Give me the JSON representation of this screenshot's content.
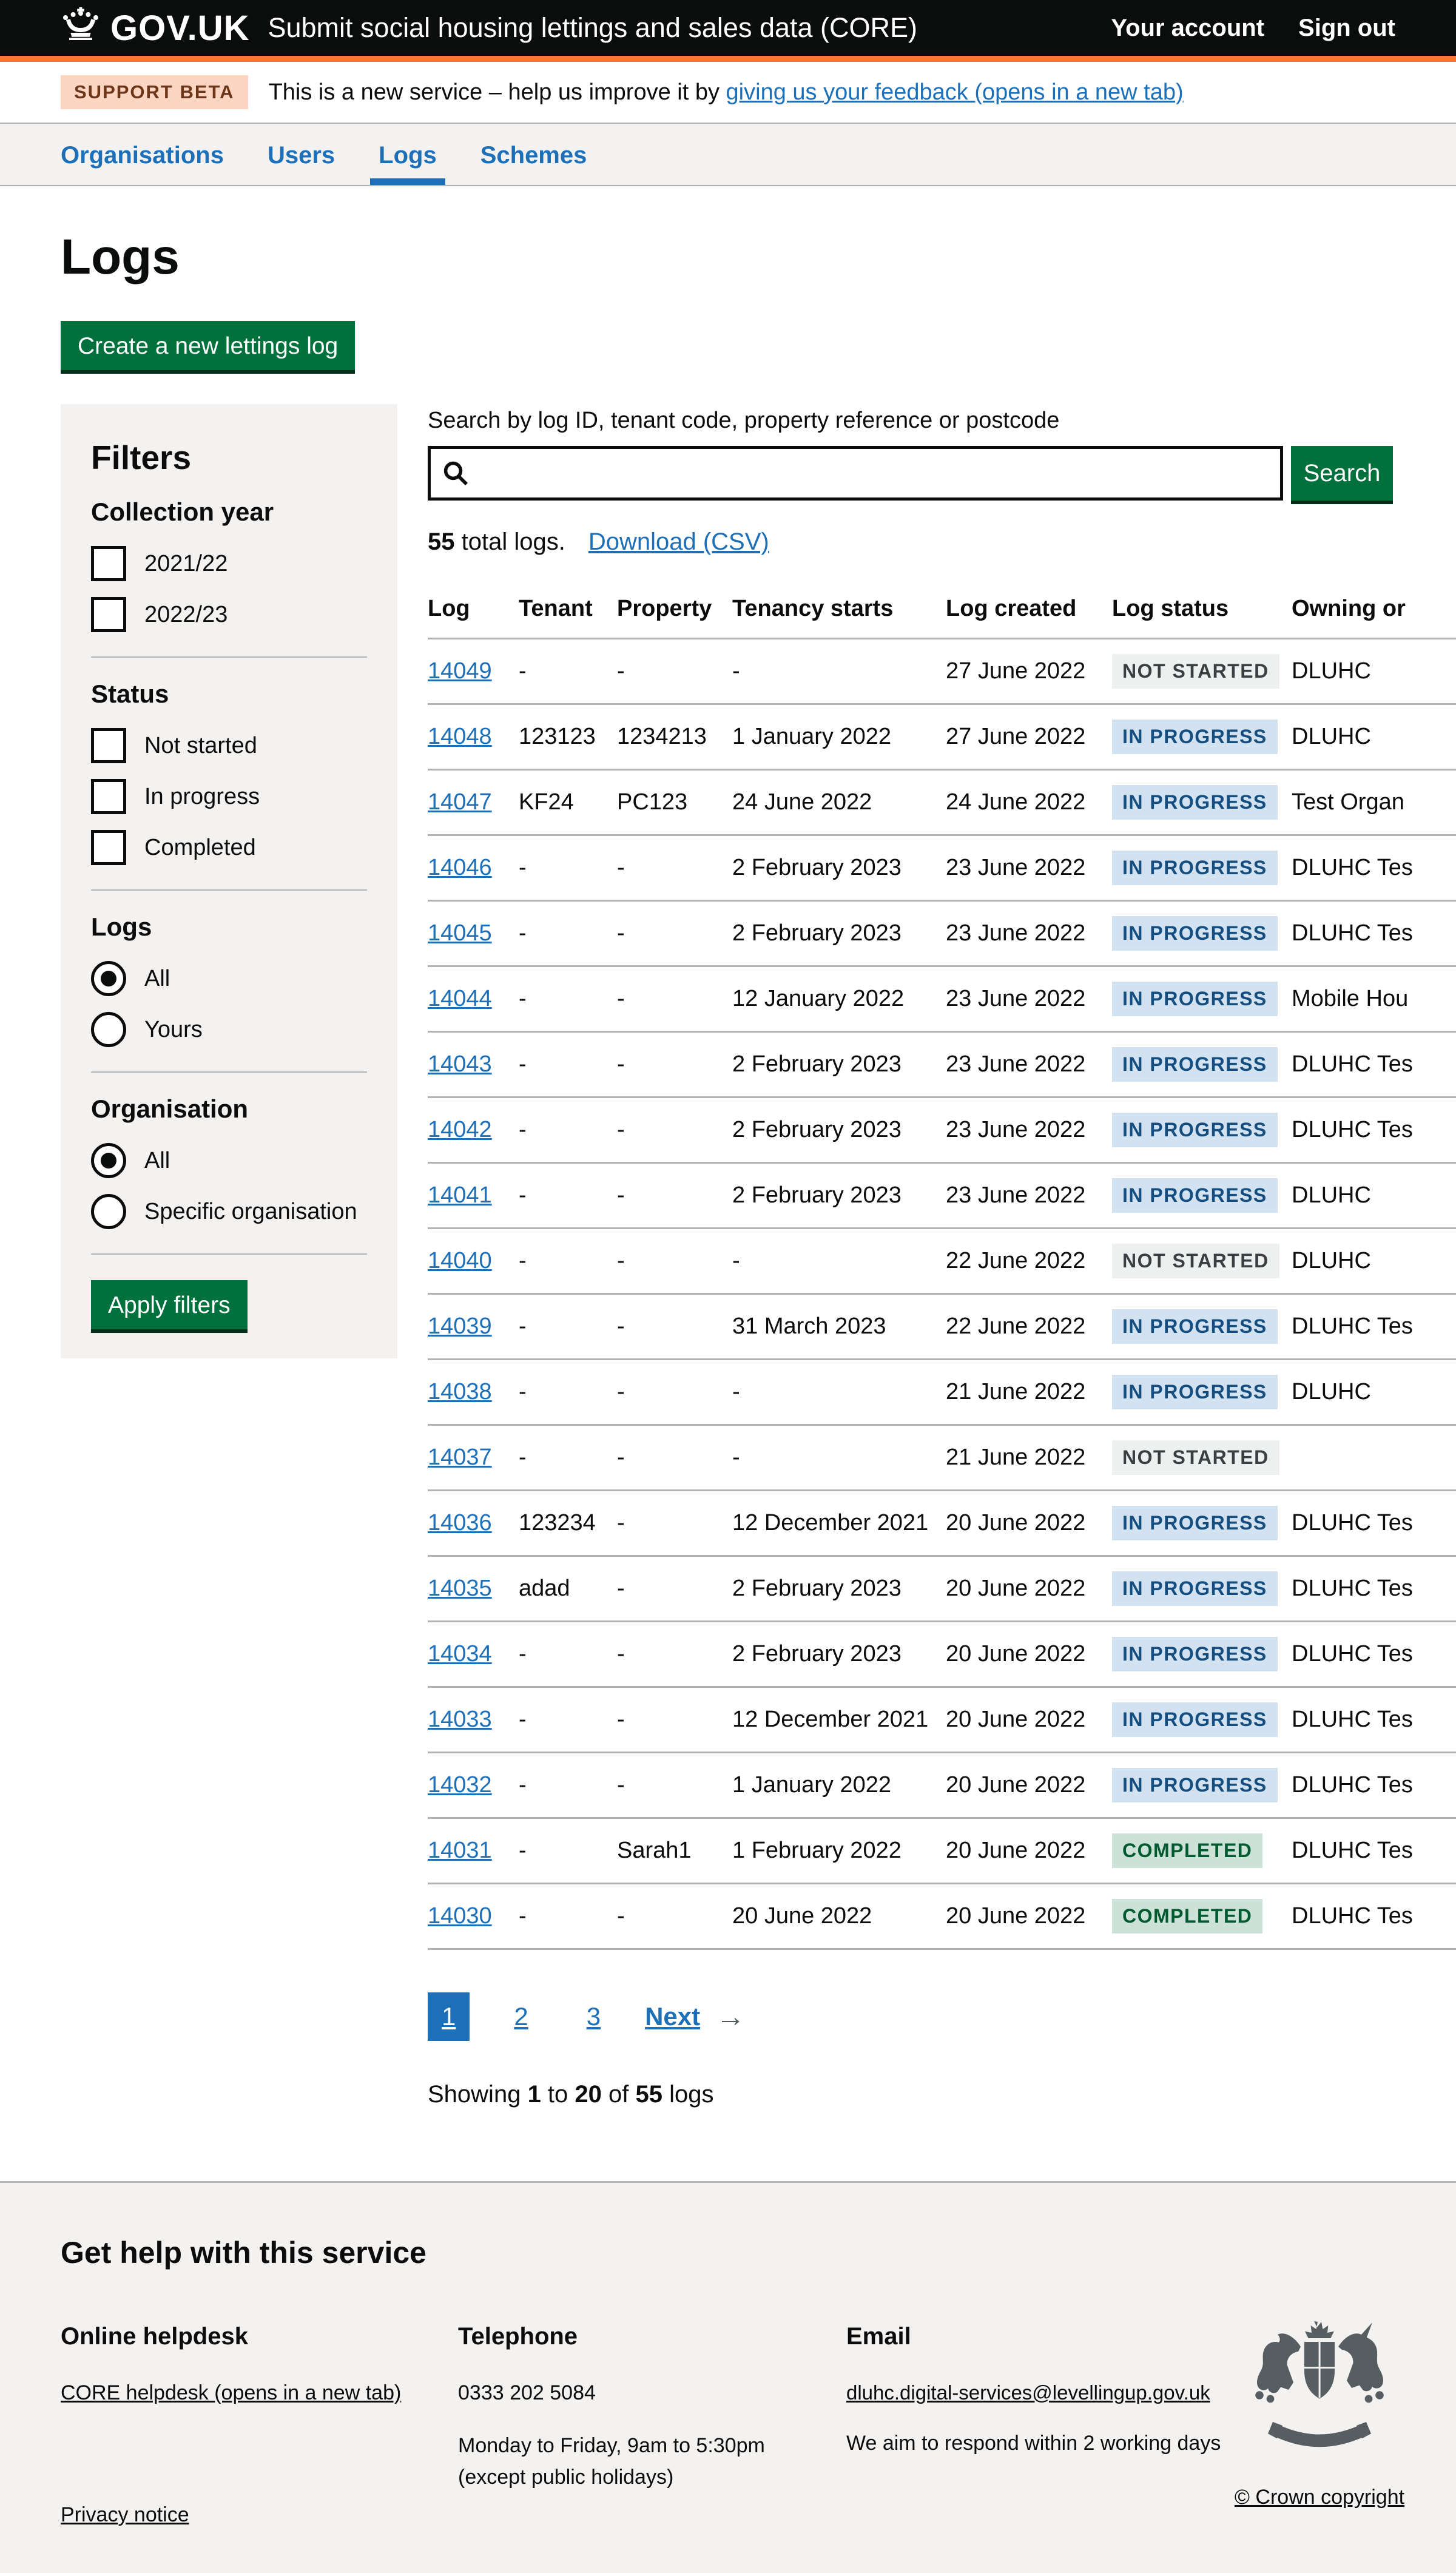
{
  "colors": {
    "header_bg": "#0b0c0c",
    "header_border_orange": "#f47738",
    "link_blue": "#1d70b8",
    "panel_grey": "#f3f2f1",
    "border_grey": "#b1b4b6",
    "button_green": "#00703c",
    "beta_tag_bg": "#fcd6c3",
    "beta_tag_text": "#6e3619",
    "tag_grey_bg": "#eeefef",
    "tag_grey_text": "#383f43",
    "tag_blue_bg": "#d2e2f1",
    "tag_blue_text": "#144e81",
    "tag_green_bg": "#cce2d8",
    "tag_green_text": "#005a30",
    "crest_grey": "#565e62"
  },
  "header": {
    "logo_text": "GOV.UK",
    "service_name": "Submit social housing lettings and sales data (CORE)",
    "account_link": "Your account",
    "signout_link": "Sign out"
  },
  "phase_banner": {
    "tag": "SUPPORT BETA",
    "text": "This is a new service – help us improve it by ",
    "link_text": "giving us your feedback (opens in a new tab)"
  },
  "nav": {
    "items": [
      {
        "label": "Organisations",
        "active": false
      },
      {
        "label": "Users",
        "active": false
      },
      {
        "label": "Logs",
        "active": true
      },
      {
        "label": "Schemes",
        "active": false
      }
    ]
  },
  "page": {
    "title": "Logs",
    "create_button": "Create a new lettings log"
  },
  "filters": {
    "title": "Filters",
    "apply_button": "Apply filters",
    "groups": [
      {
        "label": "Collection year",
        "type": "checkbox",
        "options": [
          {
            "label": "2021/22",
            "checked": false
          },
          {
            "label": "2022/23",
            "checked": false
          }
        ]
      },
      {
        "label": "Status",
        "type": "checkbox",
        "options": [
          {
            "label": "Not started",
            "checked": false
          },
          {
            "label": "In progress",
            "checked": false
          },
          {
            "label": "Completed",
            "checked": false
          }
        ]
      },
      {
        "label": "Logs",
        "type": "radio",
        "options": [
          {
            "label": "All",
            "checked": true
          },
          {
            "label": "Yours",
            "checked": false
          }
        ]
      },
      {
        "label": "Organisation",
        "type": "radio",
        "options": [
          {
            "label": "All",
            "checked": true
          },
          {
            "label": "Specific organisation",
            "checked": false
          }
        ]
      }
    ]
  },
  "search": {
    "label": "Search by log ID, tenant code, property reference or postcode",
    "value": "",
    "button": "Search"
  },
  "results": {
    "count": "55",
    "suffix": " total logs.",
    "download_link": "Download (CSV)"
  },
  "table": {
    "columns": [
      "Log",
      "Tenant",
      "Property",
      "Tenancy starts",
      "Log created",
      "Log status",
      "Owning or"
    ],
    "rows": [
      {
        "log": "14049",
        "tenant": "-",
        "property": "-",
        "tenancy_starts": "-",
        "log_created": "27 June 2022",
        "status": "NOT STARTED",
        "status_color": "grey",
        "owning": "DLUHC"
      },
      {
        "log": "14048",
        "tenant": "123123",
        "property": "1234213",
        "tenancy_starts": "1 January 2022",
        "log_created": "27 June 2022",
        "status": "IN PROGRESS",
        "status_color": "blue",
        "owning": "DLUHC"
      },
      {
        "log": "14047",
        "tenant": "KF24",
        "property": "PC123",
        "tenancy_starts": "24 June 2022",
        "log_created": "24 June 2022",
        "status": "IN PROGRESS",
        "status_color": "blue",
        "owning": "Test Organ"
      },
      {
        "log": "14046",
        "tenant": "-",
        "property": "-",
        "tenancy_starts": "2 February 2023",
        "log_created": "23 June 2022",
        "status": "IN PROGRESS",
        "status_color": "blue",
        "owning": "DLUHC Tes"
      },
      {
        "log": "14045",
        "tenant": "-",
        "property": "-",
        "tenancy_starts": "2 February 2023",
        "log_created": "23 June 2022",
        "status": "IN PROGRESS",
        "status_color": "blue",
        "owning": "DLUHC Tes"
      },
      {
        "log": "14044",
        "tenant": "-",
        "property": "-",
        "tenancy_starts": "12 January 2022",
        "log_created": "23 June 2022",
        "status": "IN PROGRESS",
        "status_color": "blue",
        "owning": "Mobile Hou"
      },
      {
        "log": "14043",
        "tenant": "-",
        "property": "-",
        "tenancy_starts": "2 February 2023",
        "log_created": "23 June 2022",
        "status": "IN PROGRESS",
        "status_color": "blue",
        "owning": "DLUHC Tes"
      },
      {
        "log": "14042",
        "tenant": "-",
        "property": "-",
        "tenancy_starts": "2 February 2023",
        "log_created": "23 June 2022",
        "status": "IN PROGRESS",
        "status_color": "blue",
        "owning": "DLUHC Tes"
      },
      {
        "log": "14041",
        "tenant": "-",
        "property": "-",
        "tenancy_starts": "2 February 2023",
        "log_created": "23 June 2022",
        "status": "IN PROGRESS",
        "status_color": "blue",
        "owning": "DLUHC"
      },
      {
        "log": "14040",
        "tenant": "-",
        "property": "-",
        "tenancy_starts": "-",
        "log_created": "22 June 2022",
        "status": "NOT STARTED",
        "status_color": "grey",
        "owning": "DLUHC"
      },
      {
        "log": "14039",
        "tenant": "-",
        "property": "-",
        "tenancy_starts": "31 March 2023",
        "log_created": "22 June 2022",
        "status": "IN PROGRESS",
        "status_color": "blue",
        "owning": "DLUHC Tes"
      },
      {
        "log": "14038",
        "tenant": "-",
        "property": "-",
        "tenancy_starts": "-",
        "log_created": "21 June 2022",
        "status": "IN PROGRESS",
        "status_color": "blue",
        "owning": "DLUHC"
      },
      {
        "log": "14037",
        "tenant": "-",
        "property": "-",
        "tenancy_starts": "-",
        "log_created": "21 June 2022",
        "status": "NOT STARTED",
        "status_color": "grey",
        "owning": ""
      },
      {
        "log": "14036",
        "tenant": "123234",
        "property": "-",
        "tenancy_starts": "12 December 2021",
        "log_created": "20 June 2022",
        "status": "IN PROGRESS",
        "status_color": "blue",
        "owning": "DLUHC Tes"
      },
      {
        "log": "14035",
        "tenant": "adad",
        "property": "-",
        "tenancy_starts": "2 February 2023",
        "log_created": "20 June 2022",
        "status": "IN PROGRESS",
        "status_color": "blue",
        "owning": "DLUHC Tes"
      },
      {
        "log": "14034",
        "tenant": "-",
        "property": "-",
        "tenancy_starts": "2 February 2023",
        "log_created": "20 June 2022",
        "status": "IN PROGRESS",
        "status_color": "blue",
        "owning": "DLUHC Tes"
      },
      {
        "log": "14033",
        "tenant": "-",
        "property": "-",
        "tenancy_starts": "12 December 2021",
        "log_created": "20 June 2022",
        "status": "IN PROGRESS",
        "status_color": "blue",
        "owning": "DLUHC Tes"
      },
      {
        "log": "14032",
        "tenant": "-",
        "property": "-",
        "tenancy_starts": "1 January 2022",
        "log_created": "20 June 2022",
        "status": "IN PROGRESS",
        "status_color": "blue",
        "owning": "DLUHC Tes"
      },
      {
        "log": "14031",
        "tenant": "-",
        "property": "Sarah1",
        "tenancy_starts": "1 February 2022",
        "log_created": "20 June 2022",
        "status": "COMPLETED",
        "status_color": "green",
        "owning": "DLUHC Tes"
      },
      {
        "log": "14030",
        "tenant": "-",
        "property": "-",
        "tenancy_starts": "20 June 2022",
        "log_created": "20 June 2022",
        "status": "COMPLETED",
        "status_color": "green",
        "owning": "DLUHC Tes"
      }
    ]
  },
  "pagination": {
    "pages": [
      {
        "label": "1",
        "active": true
      },
      {
        "label": "2",
        "active": false
      },
      {
        "label": "3",
        "active": false
      }
    ],
    "next_label": "Next",
    "arrow": "→"
  },
  "summary": {
    "prefix": "Showing ",
    "from": "1",
    "mid": " to ",
    "to": "20",
    "of": " of ",
    "total": "55",
    "suffix": " logs"
  },
  "footer": {
    "title": "Get help with this service",
    "online": {
      "heading": "Online helpdesk",
      "link": "CORE helpdesk (opens in a new tab)"
    },
    "phone": {
      "heading": "Telephone",
      "number": "0333 202 5084",
      "hours1": "Monday to Friday, 9am to 5:30pm",
      "hours2": "(except public holidays)"
    },
    "email": {
      "heading": "Email",
      "link": "dluhc.digital-services@levellingup.gov.uk",
      "note": "We aim to respond within 2 working days"
    },
    "copyright": "© Crown copyright",
    "privacy": "Privacy notice"
  }
}
